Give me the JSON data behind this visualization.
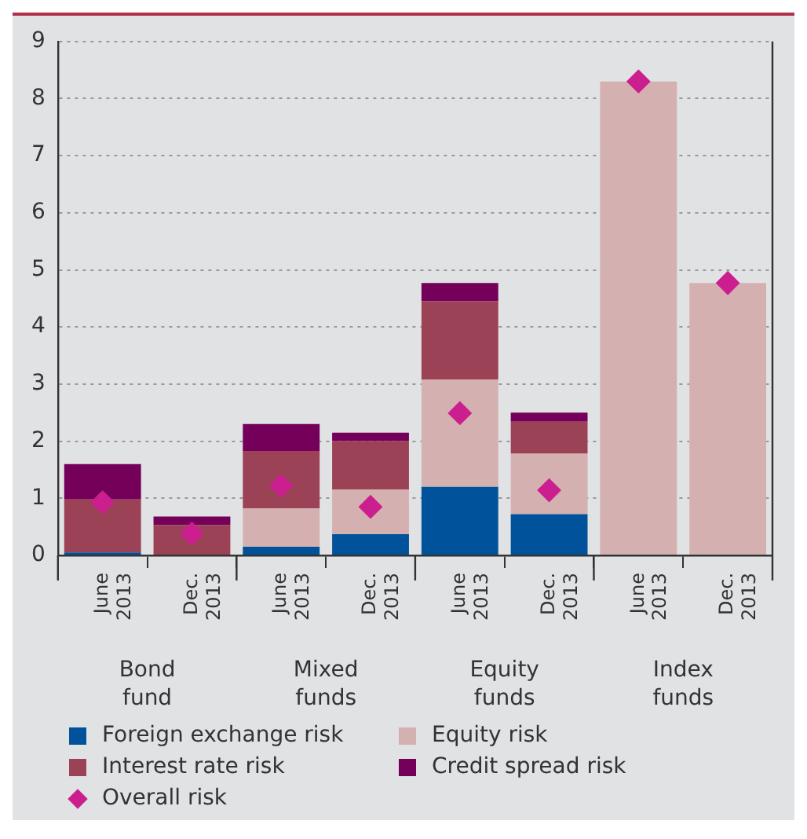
{
  "chart_data": {
    "type": "bar",
    "stacked": true,
    "categories": [
      "June 2013",
      "Dec. 2013",
      "June 2013",
      "Dec. 2013",
      "June 2013",
      "Dec. 2013",
      "June 2013",
      "Dec. 2013"
    ],
    "series": [
      {
        "name": "Foreign exchange risk",
        "color": "#00529b",
        "values": [
          0.05,
          0,
          0.15,
          0.37,
          1.2,
          0.72,
          0,
          0
        ]
      },
      {
        "name": "Equity risk",
        "color": "#d4b0b0",
        "values": [
          0,
          0,
          0.67,
          0.78,
          1.88,
          1.06,
          8.3,
          4.77
        ]
      },
      {
        "name": "Interest rate risk",
        "color": "#9b4257",
        "values": [
          0.93,
          0.53,
          1.01,
          0.85,
          1.37,
          0.56,
          0,
          0
        ]
      },
      {
        "name": "Credit spread risk",
        "color": "#75005a",
        "values": [
          0.62,
          0.15,
          0.47,
          0.15,
          0.32,
          0.16,
          0,
          0
        ]
      },
      {
        "name": "Overall risk",
        "type": "scatter",
        "marker": "diamond",
        "color": "#cc1f8f",
        "values": [
          0.93,
          0.38,
          1.22,
          0.85,
          2.49,
          1.14,
          8.3,
          4.77
        ]
      }
    ],
    "annotations": [
      "Bond fund",
      "Mixed funds",
      "Equity funds",
      "Index funds"
    ],
    "ylim": [
      0,
      9
    ],
    "yticks": [
      0,
      1,
      2,
      3,
      4,
      5,
      6,
      7,
      8,
      9
    ],
    "grid": "y",
    "legend": "bottom"
  }
}
